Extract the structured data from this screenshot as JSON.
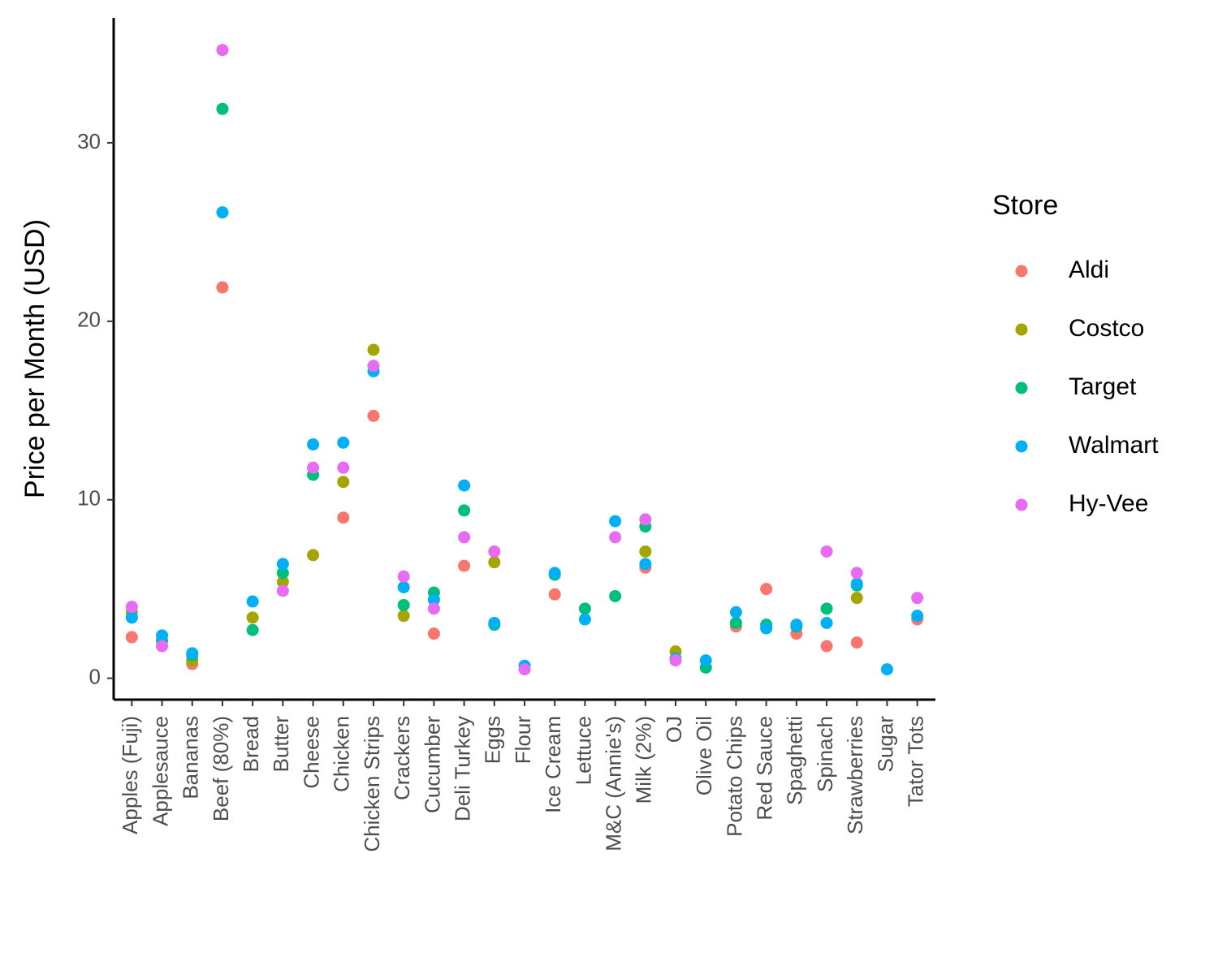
{
  "chart_data": {
    "type": "scatter",
    "y_label": "Price per Month (USD)",
    "legend_title": "Store",
    "categories": [
      "Apples (Fuji)",
      "Applesauce",
      "Bananas",
      "Beef (80%)",
      "Bread",
      "Butter",
      "Cheese",
      "Chicken",
      "Chicken Strips",
      "Crackers",
      "Cucumber",
      "Deli Turkey",
      "Eggs",
      "Flour",
      "Ice Cream",
      "Lettuce",
      "M&C (Annie's)",
      "Milk (2%)",
      "OJ",
      "Olive Oil",
      "Potato Chips",
      "Red Sauce",
      "Spaghetti",
      "Spinach",
      "Strawberries",
      "Sugar",
      "Tator Tots"
    ],
    "series": [
      {
        "name": "Aldi",
        "color": "#F8766D",
        "values": [
          2.3,
          null,
          0.8,
          21.9,
          null,
          null,
          null,
          9.0,
          14.7,
          null,
          2.5,
          6.3,
          null,
          null,
          4.7,
          null,
          null,
          6.2,
          null,
          null,
          2.9,
          5.0,
          2.5,
          1.8,
          2.0,
          null,
          3.3
        ]
      },
      {
        "name": "Costco",
        "color": "#A3A500",
        "values": [
          3.7,
          null,
          1.0,
          null,
          3.4,
          5.4,
          6.9,
          11.0,
          18.4,
          3.5,
          null,
          null,
          6.5,
          null,
          null,
          null,
          null,
          7.1,
          1.5,
          null,
          null,
          null,
          null,
          null,
          4.5,
          null,
          null
        ]
      },
      {
        "name": "Target",
        "color": "#00BF7D",
        "values": [
          3.4,
          2.1,
          1.3,
          31.9,
          2.7,
          5.9,
          11.4,
          null,
          null,
          4.1,
          4.8,
          9.4,
          3.0,
          null,
          5.8,
          3.9,
          4.6,
          8.5,
          null,
          0.6,
          3.1,
          3.0,
          2.9,
          3.9,
          5.2,
          null,
          null
        ]
      },
      {
        "name": "Walmart",
        "color": "#00B0F6",
        "values": [
          3.4,
          2.4,
          1.4,
          26.1,
          4.3,
          6.4,
          13.1,
          13.2,
          17.2,
          5.1,
          4.4,
          10.8,
          3.1,
          0.7,
          5.9,
          3.3,
          8.8,
          6.4,
          1.1,
          1.0,
          3.7,
          2.8,
          3.0,
          3.1,
          5.3,
          0.5,
          3.5
        ]
      },
      {
        "name": "Hy-Vee",
        "color": "#E76BF3",
        "values": [
          4.0,
          1.8,
          null,
          35.2,
          null,
          4.9,
          11.8,
          11.8,
          17.5,
          5.7,
          3.9,
          7.9,
          7.1,
          0.5,
          null,
          null,
          7.9,
          8.9,
          1.0,
          null,
          null,
          null,
          null,
          7.1,
          5.9,
          null,
          4.5
        ]
      }
    ],
    "ylim": [
      -1.2,
      37
    ],
    "yticks": [
      0,
      10,
      20,
      30
    ]
  }
}
